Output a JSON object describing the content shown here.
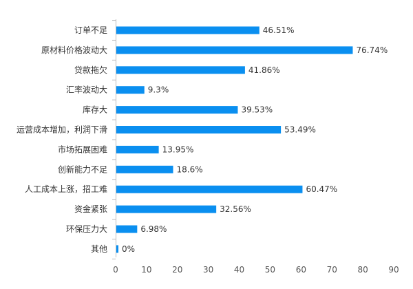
{
  "chart_data": {
    "type": "bar",
    "orientation": "horizontal",
    "categories": [
      "订单不足",
      "原材料价格波动大",
      "贷款拖欠",
      "汇率波动大",
      "库存大",
      "运营成本增加，利润下滑",
      "市场拓展困难",
      "创新能力不足",
      "人工成本上涨，招工难",
      "资金紧张",
      "环保压力大",
      "其他"
    ],
    "values": [
      46.51,
      76.74,
      41.86,
      9.3,
      39.53,
      53.49,
      13.95,
      18.6,
      60.47,
      32.56,
      6.98,
      0
    ],
    "value_labels": [
      "46.51%",
      "76.74%",
      "41.86%",
      "9.3%",
      "39.53%",
      "53.49%",
      "13.95%",
      "18.6%",
      "60.47%",
      "32.56%",
      "6.98%",
      "0%"
    ],
    "xlim": [
      0,
      90
    ],
    "xticks": [
      0,
      10,
      20,
      30,
      40,
      50,
      60,
      70,
      80,
      90
    ],
    "grid": false,
    "bar_color": "#0a8ff0",
    "title": "",
    "xlabel": "",
    "ylabel": ""
  }
}
